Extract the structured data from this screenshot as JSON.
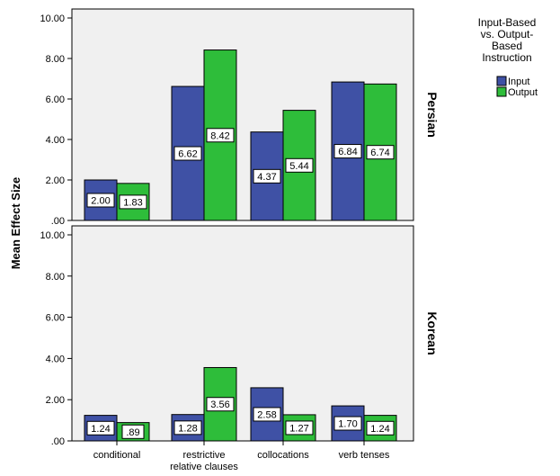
{
  "chart_data": {
    "type": "bar",
    "ylabel": "Mean Effect Size",
    "categories": [
      "conditional",
      "restrictive relative clauses",
      "collocations",
      "verb tenses"
    ],
    "category_lines": [
      [
        "conditional"
      ],
      [
        "restrictive",
        "relative clauses"
      ],
      [
        "collocations"
      ],
      [
        "verb tenses"
      ]
    ],
    "ylim": [
      0,
      10
    ],
    "y_ticks": [
      ".00",
      "2.00",
      "4.00",
      "6.00",
      "8.00",
      "10.00"
    ],
    "legend": {
      "title_lines": [
        "Input-Based",
        "vs. Output-",
        "Based",
        "Instruction"
      ],
      "position": "top-right"
    },
    "series_colors": {
      "Input": "#3f51a5",
      "Output": "#2ebd3a"
    },
    "panel_background": "#f0f0f0",
    "panels": [
      {
        "name": "Persian",
        "series": [
          {
            "name": "Input",
            "values": [
              2.0,
              6.62,
              4.37,
              6.84
            ],
            "labels": [
              "2.00",
              "6.62",
              "4.37",
              "6.84"
            ]
          },
          {
            "name": "Output",
            "values": [
              1.83,
              8.42,
              5.44,
              6.74
            ],
            "labels": [
              "1.83",
              "8.42",
              "5.44",
              "6.74"
            ]
          }
        ]
      },
      {
        "name": "Korean",
        "series": [
          {
            "name": "Input",
            "values": [
              1.24,
              1.28,
              2.58,
              1.7
            ],
            "labels": [
              "1.24",
              "1.28",
              "2.58",
              "1.70"
            ]
          },
          {
            "name": "Output",
            "values": [
              0.89,
              3.56,
              1.27,
              1.24
            ],
            "labels": [
              ".89",
              "3.56",
              "1.27",
              "1.24"
            ]
          }
        ]
      }
    ]
  }
}
